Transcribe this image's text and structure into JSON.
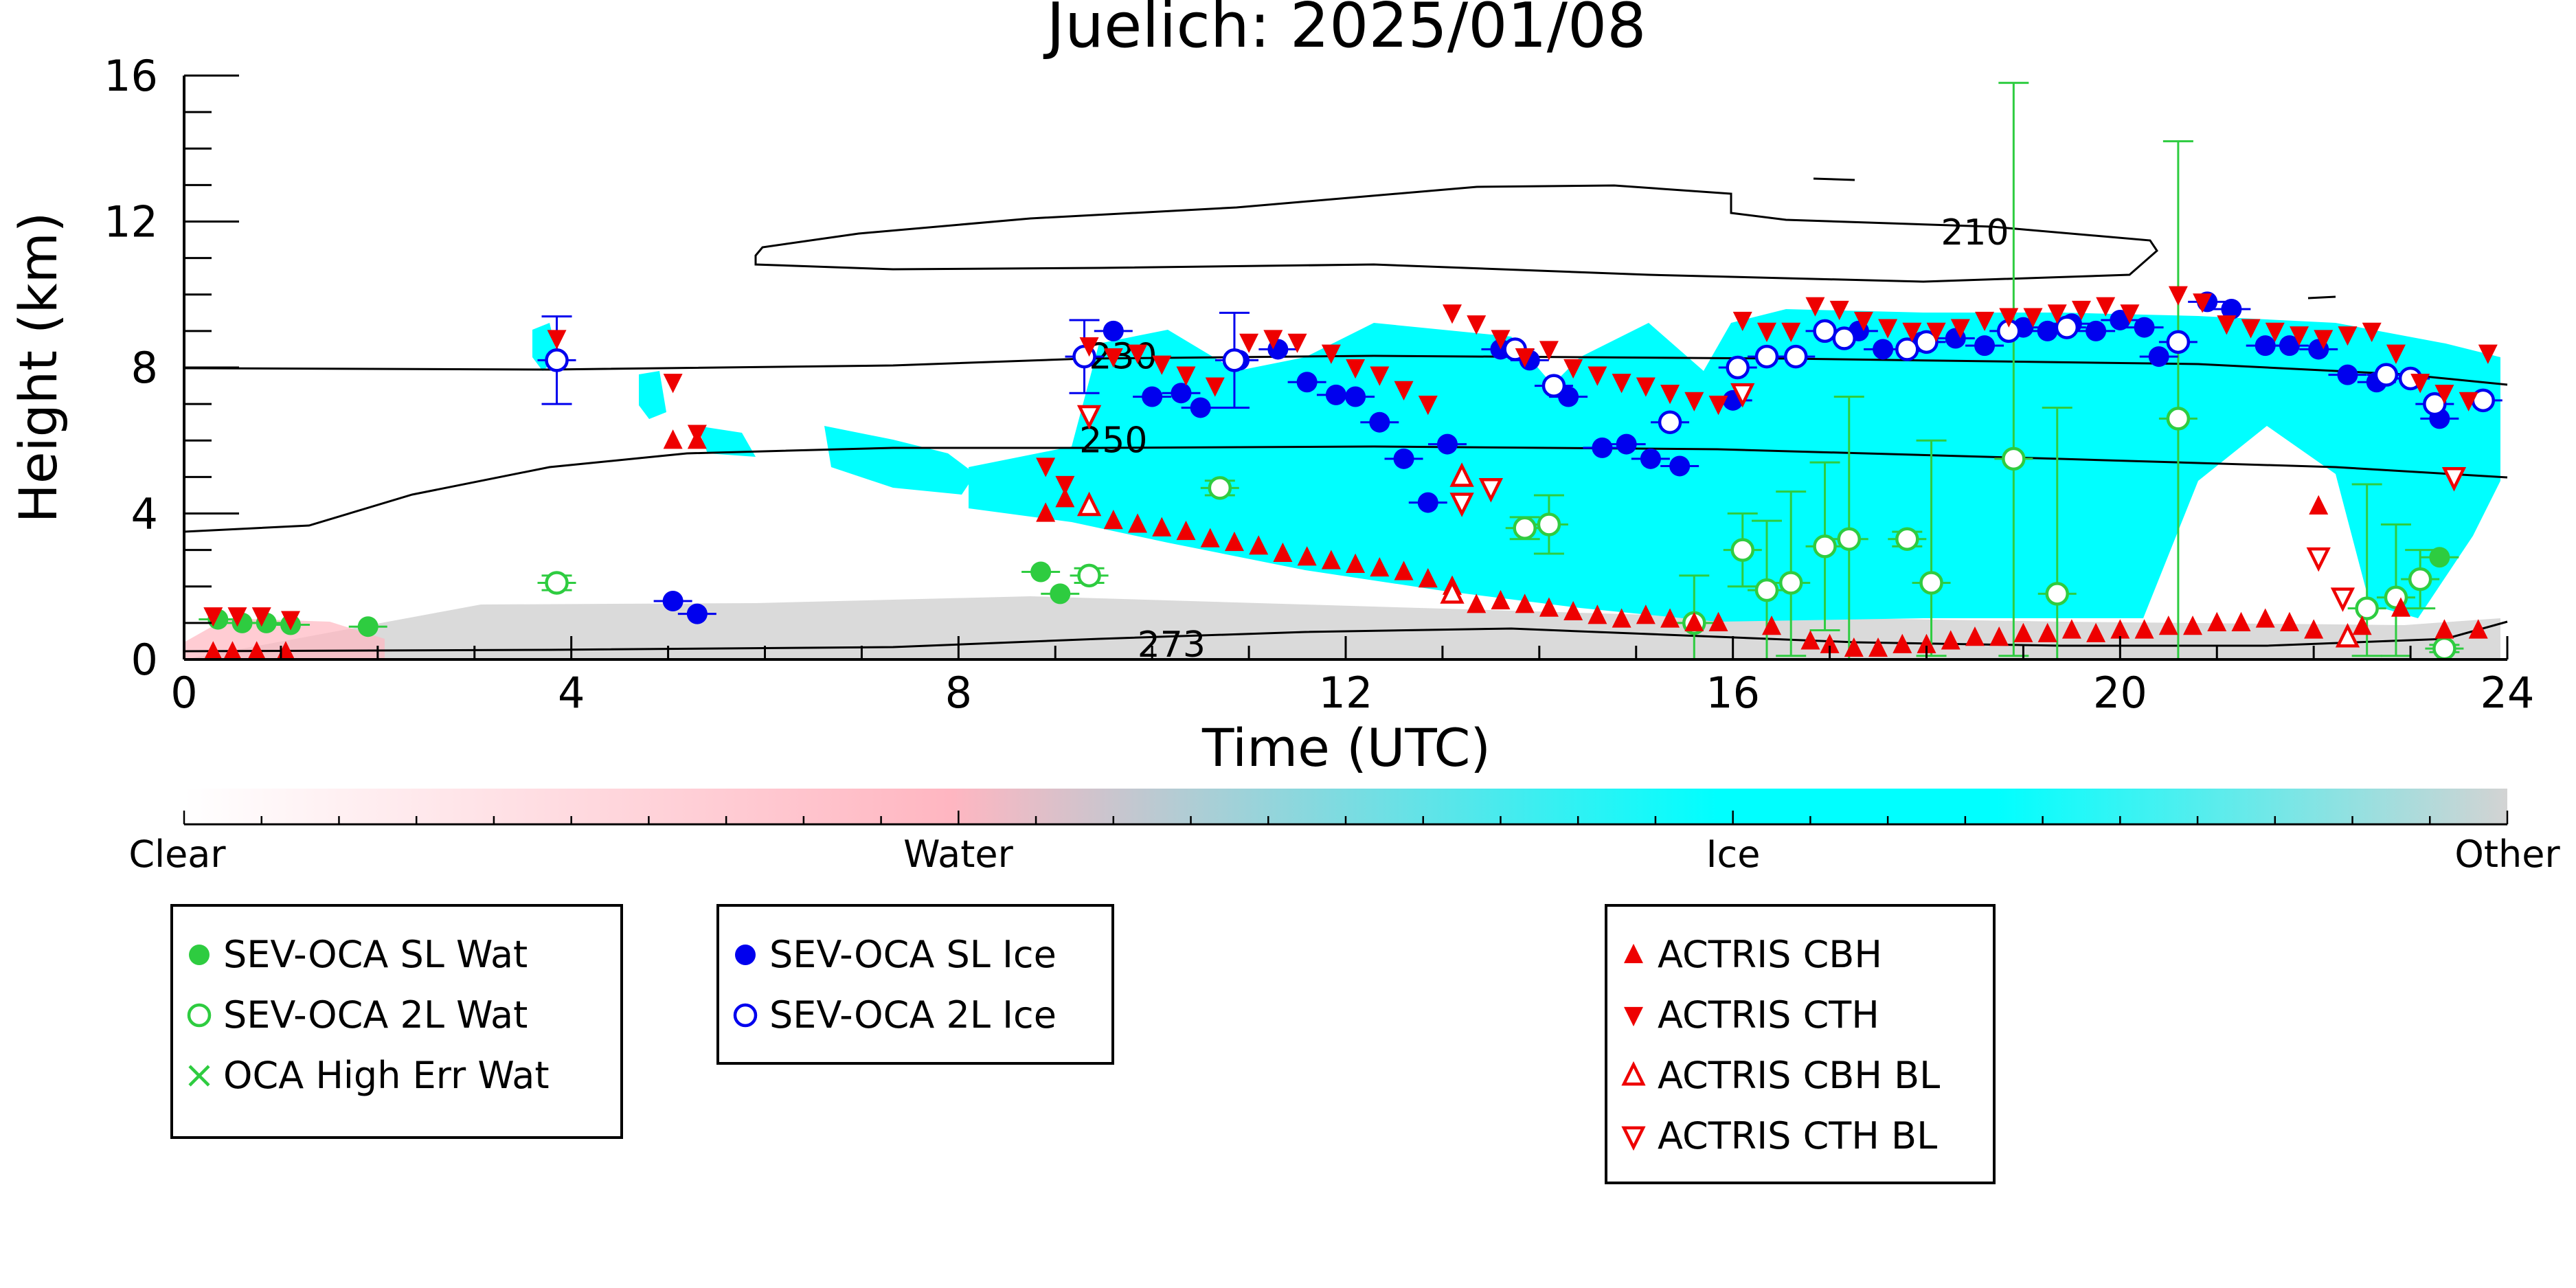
{
  "chart_data": {
    "type": "scatter",
    "title": "Juelich: 2025/01/08",
    "xlabel": "Time (UTC)",
    "ylabel": "Height (km)",
    "xlim": [
      0,
      24
    ],
    "ylim": [
      0,
      16
    ],
    "xticks": [
      "0",
      "4",
      "8",
      "12",
      "16",
      "20",
      "24"
    ],
    "yticks": [
      "0",
      "4",
      "8",
      "12",
      "16"
    ],
    "contours": [
      {
        "label": "210",
        "label_x": 18.5,
        "label_y": 11.6
      },
      {
        "label": "230",
        "label_x": 9.7,
        "label_y": 8.2
      },
      {
        "label": "250",
        "label_x": 9.6,
        "label_y": 5.9
      },
      {
        "label": "273",
        "label_x": 10.2,
        "label_y": 0.3
      }
    ],
    "colorbar": {
      "labels": [
        "Clear",
        "Water",
        "Ice",
        "Other"
      ],
      "colors": [
        "#ffffff",
        "#ffb6c1",
        "#00ffff",
        "#d3d3d3"
      ]
    },
    "legends": [
      {
        "name": "legend-water",
        "items": [
          {
            "label": "SEV-OCA SL Wat",
            "marker": "filled-circle",
            "color": "#2ecc40"
          },
          {
            "label": "SEV-OCA 2L Wat",
            "marker": "open-circle",
            "color": "#2ecc40"
          },
          {
            "label": "OCA High Err Wat",
            "marker": "x",
            "color": "#2ecc40"
          }
        ]
      },
      {
        "name": "legend-ice",
        "items": [
          {
            "label": "SEV-OCA SL Ice",
            "marker": "filled-circle",
            "color": "#0000ee"
          },
          {
            "label": "SEV-OCA 2L Ice",
            "marker": "open-circle",
            "color": "#0000ee"
          }
        ]
      },
      {
        "name": "legend-actris",
        "items": [
          {
            "label": "ACTRIS CBH",
            "marker": "triangle-up",
            "color": "#ee0000"
          },
          {
            "label": "ACTRIS CTH",
            "marker": "triangle-down",
            "color": "#ee0000"
          },
          {
            "label": "ACTRIS CBH BL",
            "marker": "open-triangle-up",
            "color": "#ee0000"
          },
          {
            "label": "ACTRIS CTH BL",
            "marker": "open-triangle-down",
            "color": "#ee0000"
          }
        ]
      }
    ],
    "series": [
      {
        "name": "SEV-OCA SL Wat",
        "color": "#2ecc40",
        "marker": "filled-circle",
        "points": [
          [
            0.35,
            1.1
          ],
          [
            0.6,
            1.0
          ],
          [
            0.85,
            1.0
          ],
          [
            1.1,
            0.95
          ],
          [
            1.9,
            0.9
          ],
          [
            8.85,
            2.4
          ],
          [
            9.05,
            1.8
          ],
          [
            23.3,
            2.8
          ]
        ]
      },
      {
        "name": "SEV-OCA 2L Wat",
        "color": "#2ecc40",
        "marker": "open-circle",
        "points": [
          [
            3.85,
            2.1
          ],
          [
            9.35,
            2.3
          ],
          [
            10.7,
            4.7
          ],
          [
            13.85,
            3.6
          ],
          [
            14.1,
            3.7
          ],
          [
            15.6,
            1.0
          ],
          [
            16.1,
            3.0
          ],
          [
            16.35,
            1.9
          ],
          [
            16.6,
            2.1
          ],
          [
            16.95,
            3.1
          ],
          [
            17.2,
            3.3
          ],
          [
            17.8,
            3.3
          ],
          [
            18.05,
            2.1
          ],
          [
            18.9,
            5.5
          ],
          [
            19.35,
            1.8
          ],
          [
            20.6,
            6.6
          ],
          [
            22.55,
            1.4
          ],
          [
            22.85,
            1.7
          ],
          [
            23.1,
            2.2
          ],
          [
            23.35,
            0.3
          ]
        ],
        "errors": [
          [
            3.85,
            0.2,
            0.2
          ],
          [
            9.35,
            0.2,
            0.2
          ],
          [
            10.7,
            0.2,
            0.2
          ],
          [
            13.85,
            0.3,
            0.3
          ],
          [
            14.1,
            0.8,
            0.8
          ],
          [
            15.6,
            1.3,
            1.3
          ],
          [
            16.1,
            1.0,
            1.0
          ],
          [
            16.35,
            1.9,
            1.9
          ],
          [
            16.6,
            2.5,
            2.0
          ],
          [
            16.95,
            2.3,
            2.3
          ],
          [
            17.2,
            3.9,
            3.3
          ],
          [
            17.8,
            0.2,
            0.2
          ],
          [
            18.05,
            3.9,
            2.0
          ],
          [
            18.9,
            10.3,
            5.4
          ],
          [
            19.35,
            5.1,
            1.8
          ],
          [
            20.6,
            7.6,
            6.6
          ],
          [
            22.55,
            3.4,
            1.3
          ],
          [
            22.85,
            2.0,
            1.6
          ],
          [
            23.1,
            0.8,
            0.8
          ],
          [
            23.35,
            0.1,
            0.1
          ]
        ]
      },
      {
        "name": "SEV-OCA SL Ice",
        "color": "#0000ee",
        "marker": "filled-circle",
        "points": [
          [
            5.05,
            1.6
          ],
          [
            5.3,
            1.25
          ],
          [
            9.6,
            9.0
          ],
          [
            10.0,
            7.2
          ],
          [
            10.3,
            7.3
          ],
          [
            10.5,
            6.9
          ],
          [
            10.9,
            8.2
          ],
          [
            11.3,
            8.5
          ],
          [
            11.6,
            7.6
          ],
          [
            11.9,
            7.25
          ],
          [
            12.1,
            7.2
          ],
          [
            12.35,
            6.5
          ],
          [
            12.6,
            5.5
          ],
          [
            12.85,
            4.3
          ],
          [
            13.05,
            5.9
          ],
          [
            13.6,
            8.5
          ],
          [
            13.9,
            8.2
          ],
          [
            14.3,
            7.2
          ],
          [
            14.65,
            5.8
          ],
          [
            14.9,
            5.9
          ],
          [
            15.15,
            5.5
          ],
          [
            15.45,
            5.3
          ],
          [
            16.0,
            7.1
          ],
          [
            17.3,
            9.0
          ],
          [
            17.55,
            8.5
          ],
          [
            17.95,
            8.7
          ],
          [
            18.3,
            8.8
          ],
          [
            18.6,
            8.6
          ],
          [
            19.0,
            9.1
          ],
          [
            19.25,
            9.0
          ],
          [
            19.5,
            9.2
          ],
          [
            19.75,
            9.0
          ],
          [
            20.0,
            9.3
          ],
          [
            20.25,
            9.1
          ],
          [
            20.4,
            8.3
          ],
          [
            20.9,
            9.8
          ],
          [
            21.15,
            9.6
          ],
          [
            21.5,
            8.6
          ],
          [
            21.75,
            8.6
          ],
          [
            22.05,
            8.5
          ],
          [
            22.35,
            7.8
          ],
          [
            22.65,
            7.6
          ],
          [
            23.3,
            6.6
          ]
        ]
      },
      {
        "name": "SEV-OCA 2L Ice",
        "color": "#0000ee",
        "marker": "open-circle",
        "points": [
          [
            3.85,
            8.2
          ],
          [
            9.3,
            8.3
          ],
          [
            10.85,
            8.2
          ],
          [
            13.75,
            8.5
          ],
          [
            14.15,
            7.5
          ],
          [
            15.35,
            6.5
          ],
          [
            16.05,
            8.0
          ],
          [
            16.35,
            8.3
          ],
          [
            16.65,
            8.3
          ],
          [
            16.95,
            9.0
          ],
          [
            17.15,
            8.8
          ],
          [
            17.8,
            8.5
          ],
          [
            18.0,
            8.7
          ],
          [
            18.85,
            9.0
          ],
          [
            19.45,
            9.1
          ],
          [
            20.6,
            8.7
          ],
          [
            22.75,
            7.8
          ],
          [
            23.0,
            7.7
          ],
          [
            23.25,
            7.0
          ],
          [
            23.75,
            7.1
          ]
        ],
        "errors": [
          [
            3.85,
            1.2,
            1.2
          ],
          [
            9.3,
            1.0,
            1.0
          ],
          [
            10.85,
            1.3,
            1.3
          ]
        ]
      },
      {
        "name": "ACTRIS CBH",
        "color": "#ee0000",
        "marker": "triangle-up",
        "points": [
          [
            0.3,
            0.2
          ],
          [
            0.5,
            0.2
          ],
          [
            0.75,
            0.2
          ],
          [
            1.05,
            0.2
          ],
          [
            5.05,
            6.0
          ],
          [
            5.3,
            6.0
          ],
          [
            8.9,
            4.0
          ],
          [
            9.1,
            4.4
          ],
          [
            9.6,
            3.8
          ],
          [
            9.85,
            3.7
          ],
          [
            10.1,
            3.6
          ],
          [
            10.35,
            3.5
          ],
          [
            10.6,
            3.3
          ],
          [
            10.85,
            3.2
          ],
          [
            11.1,
            3.1
          ],
          [
            11.35,
            2.9
          ],
          [
            11.6,
            2.8
          ],
          [
            11.85,
            2.7
          ],
          [
            12.1,
            2.6
          ],
          [
            12.35,
            2.5
          ],
          [
            12.6,
            2.4
          ],
          [
            12.85,
            2.2
          ],
          [
            13.1,
            2.0
          ],
          [
            13.35,
            1.5
          ],
          [
            13.6,
            1.6
          ],
          [
            13.85,
            1.5
          ],
          [
            14.1,
            1.4
          ],
          [
            14.35,
            1.3
          ],
          [
            14.6,
            1.2
          ],
          [
            14.85,
            1.1
          ],
          [
            15.1,
            1.2
          ],
          [
            15.35,
            1.1
          ],
          [
            15.6,
            1.0
          ],
          [
            15.85,
            1.0
          ],
          [
            16.4,
            0.9
          ],
          [
            16.8,
            0.5
          ],
          [
            17.0,
            0.4
          ],
          [
            17.25,
            0.3
          ],
          [
            17.5,
            0.3
          ],
          [
            17.75,
            0.4
          ],
          [
            18.0,
            0.4
          ],
          [
            18.25,
            0.5
          ],
          [
            18.5,
            0.6
          ],
          [
            18.75,
            0.6
          ],
          [
            19.0,
            0.7
          ],
          [
            19.25,
            0.7
          ],
          [
            19.5,
            0.8
          ],
          [
            19.75,
            0.7
          ],
          [
            20.0,
            0.8
          ],
          [
            20.25,
            0.8
          ],
          [
            20.5,
            0.9
          ],
          [
            20.75,
            0.9
          ],
          [
            21.0,
            1.0
          ],
          [
            21.25,
            1.0
          ],
          [
            21.5,
            1.1
          ],
          [
            21.75,
            1.0
          ],
          [
            22.0,
            0.8
          ],
          [
            22.05,
            4.2
          ],
          [
            22.5,
            0.9
          ],
          [
            22.9,
            1.4
          ],
          [
            23.35,
            0.8
          ],
          [
            23.7,
            0.8
          ]
        ]
      },
      {
        "name": "ACTRIS CTH",
        "color": "#ee0000",
        "marker": "triangle-down",
        "points": [
          [
            0.3,
            1.2
          ],
          [
            0.55,
            1.2
          ],
          [
            0.8,
            1.2
          ],
          [
            1.1,
            1.1
          ],
          [
            3.85,
            8.8
          ],
          [
            5.05,
            7.6
          ],
          [
            5.3,
            6.2
          ],
          [
            8.9,
            5.3
          ],
          [
            9.1,
            4.8
          ],
          [
            9.35,
            8.6
          ],
          [
            9.6,
            8.3
          ],
          [
            9.85,
            8.4
          ],
          [
            10.1,
            8.1
          ],
          [
            10.35,
            7.8
          ],
          [
            10.65,
            7.5
          ],
          [
            11.0,
            8.7
          ],
          [
            11.25,
            8.8
          ],
          [
            11.5,
            8.7
          ],
          [
            11.85,
            8.4
          ],
          [
            12.1,
            8.0
          ],
          [
            12.35,
            7.8
          ],
          [
            12.6,
            7.4
          ],
          [
            12.85,
            7.0
          ],
          [
            13.1,
            9.5
          ],
          [
            13.35,
            9.2
          ],
          [
            13.6,
            8.8
          ],
          [
            13.85,
            8.3
          ],
          [
            14.1,
            8.5
          ],
          [
            14.35,
            8.0
          ],
          [
            14.6,
            7.8
          ],
          [
            14.85,
            7.6
          ],
          [
            15.1,
            7.5
          ],
          [
            15.35,
            7.3
          ],
          [
            15.6,
            7.1
          ],
          [
            15.85,
            7.0
          ],
          [
            16.1,
            9.3
          ],
          [
            16.35,
            9.0
          ],
          [
            16.6,
            9.0
          ],
          [
            16.85,
            9.7
          ],
          [
            17.1,
            9.6
          ],
          [
            17.35,
            9.3
          ],
          [
            17.6,
            9.1
          ],
          [
            17.85,
            9.0
          ],
          [
            18.1,
            9.0
          ],
          [
            18.35,
            9.1
          ],
          [
            18.6,
            9.3
          ],
          [
            18.85,
            9.4
          ],
          [
            19.1,
            9.4
          ],
          [
            19.35,
            9.5
          ],
          [
            19.6,
            9.6
          ],
          [
            19.85,
            9.7
          ],
          [
            20.1,
            9.5
          ],
          [
            20.6,
            10.0
          ],
          [
            20.85,
            9.8
          ],
          [
            21.1,
            9.2
          ],
          [
            21.35,
            9.1
          ],
          [
            21.6,
            9.0
          ],
          [
            21.85,
            8.9
          ],
          [
            22.1,
            8.8
          ],
          [
            22.35,
            8.9
          ],
          [
            22.6,
            9.0
          ],
          [
            22.85,
            8.4
          ],
          [
            23.1,
            7.6
          ],
          [
            23.35,
            7.3
          ],
          [
            23.6,
            7.1
          ],
          [
            23.8,
            8.4
          ]
        ]
      },
      {
        "name": "ACTRIS CBH BL",
        "color": "#ee0000",
        "marker": "open-triangle-up",
        "points": [
          [
            9.35,
            4.2
          ],
          [
            13.1,
            1.8
          ],
          [
            13.2,
            5.0
          ],
          [
            22.35,
            0.6
          ]
        ]
      },
      {
        "name": "ACTRIS CTH BL",
        "color": "#ee0000",
        "marker": "open-triangle-down",
        "points": [
          [
            9.35,
            6.7
          ],
          [
            13.2,
            4.3
          ],
          [
            13.5,
            4.7
          ],
          [
            16.1,
            7.3
          ],
          [
            22.05,
            2.8
          ],
          [
            22.3,
            1.7
          ],
          [
            23.45,
            5.0
          ]
        ]
      }
    ]
  }
}
